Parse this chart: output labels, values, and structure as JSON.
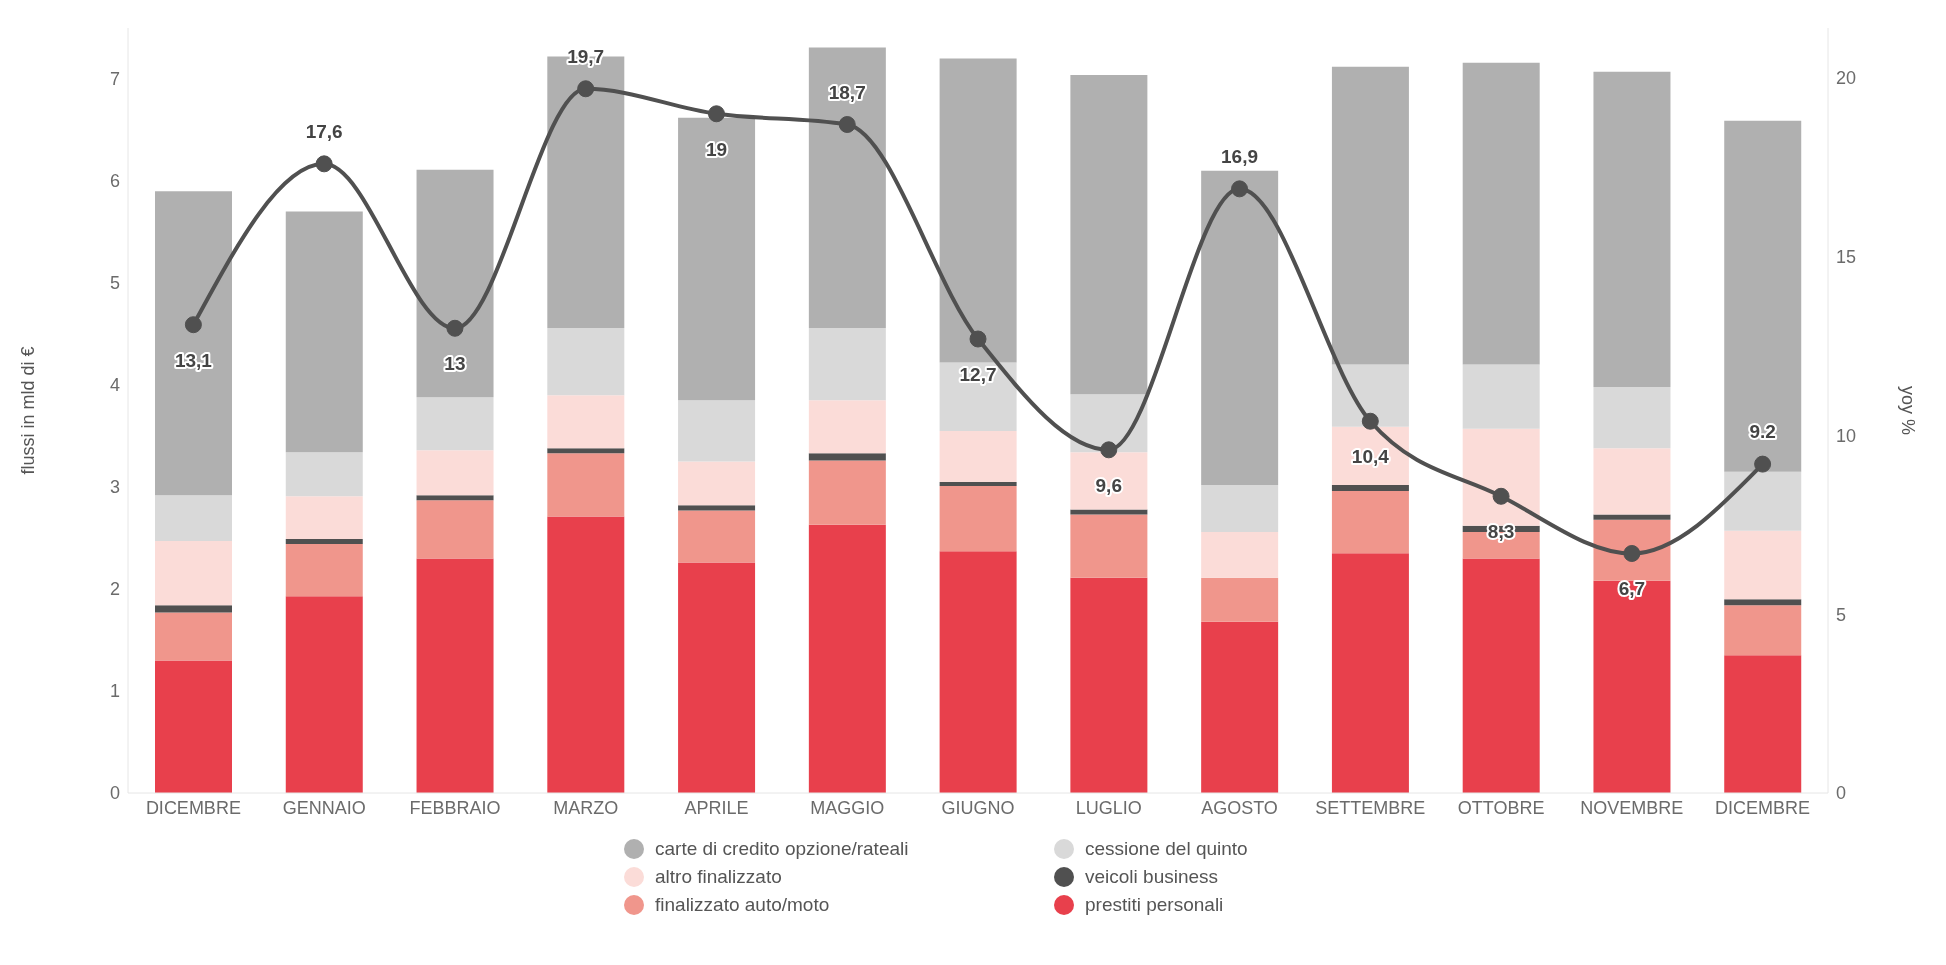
{
  "chart_data": {
    "type": "bar",
    "stacked": true,
    "ylabel": "flussi in mld di €",
    "y2label": "yoy %",
    "categories": [
      "DICEMBRE",
      "GENNAIO",
      "FEBBRAIO",
      "MARZO",
      "APRILE",
      "MAGGIO",
      "GIUGNO",
      "LUGLIO",
      "AGOSTO",
      "SETTEMBRE",
      "OTTOBRE",
      "NOVEMBRE",
      "DICEMBRE"
    ],
    "series": [
      {
        "name": "prestiti personali",
        "color": "#e8404c",
        "values": [
          1.3,
          1.93,
          2.3,
          2.71,
          2.26,
          2.63,
          2.37,
          2.11,
          1.68,
          2.35,
          2.3,
          2.08,
          1.35
        ]
      },
      {
        "name": "finalizzato auto/moto",
        "color": "#f0968c",
        "values": [
          0.47,
          0.51,
          0.57,
          0.62,
          0.51,
          0.63,
          0.64,
          0.62,
          0.43,
          0.61,
          0.26,
          0.6,
          0.49
        ]
      },
      {
        "name": "veicoli business",
        "color": "#505050",
        "values": [
          0.07,
          0.05,
          0.05,
          0.05,
          0.05,
          0.07,
          0.04,
          0.05,
          0,
          0.06,
          0.06,
          0.05,
          0.06
        ]
      },
      {
        "name": "altro finalizzato",
        "color": "#fbdcd8",
        "values": [
          0.63,
          0.42,
          0.44,
          0.52,
          0.43,
          0.52,
          0.5,
          0.56,
          0.45,
          0.57,
          0.95,
          0.65,
          0.67
        ]
      },
      {
        "name": "cessione del quinto",
        "color": "#d9d9d9",
        "values": [
          0.45,
          0.43,
          0.52,
          0.66,
          0.6,
          0.71,
          0.67,
          0.57,
          0.46,
          0.61,
          0.63,
          0.6,
          0.58
        ]
      },
      {
        "name": "carte di credito opzione/rateali",
        "color": "#b0b0b0",
        "values": [
          2.98,
          2.36,
          2.23,
          2.66,
          2.77,
          2.75,
          2.98,
          3.13,
          3.08,
          2.92,
          2.96,
          3.09,
          3.44
        ]
      },
      {
        "type": "line",
        "axis": "y2",
        "color": "#505050",
        "values": [
          13.1,
          17.6,
          13,
          19.7,
          19,
          18.7,
          12.7,
          9.6,
          16.9,
          10.4,
          8.3,
          6.7,
          9.2
        ],
        "value_labels": [
          "13,1",
          "17,6",
          "13",
          "19,7",
          "19",
          "18,7",
          "12,7",
          "9,6",
          "16,9",
          "10,4",
          "8,3",
          "6,7",
          "9.2"
        ]
      }
    ],
    "ylim": [
      0,
      7.5
    ],
    "yticks": [
      0,
      1,
      2,
      3,
      4,
      5,
      6,
      7
    ],
    "y2lim": [
      0,
      21.4
    ],
    "y2ticks": [
      0,
      5,
      10,
      15,
      20
    ],
    "grid": false,
    "legend": "bottom",
    "marker": "circle",
    "line_style": "solid"
  }
}
